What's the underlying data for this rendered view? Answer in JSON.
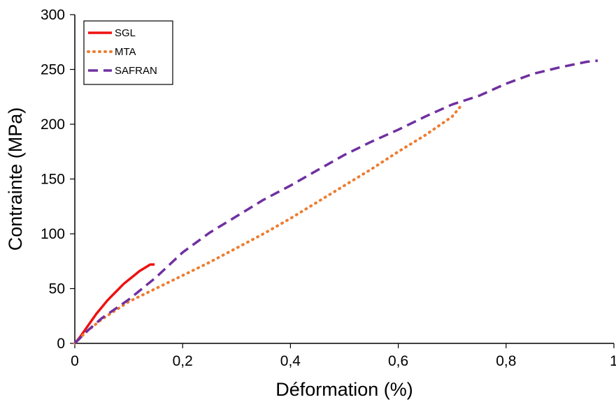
{
  "chart_data": {
    "type": "line",
    "xlabel": "Déformation (%)",
    "ylabel": "Contrainte (MPa)",
    "xlim": [
      0,
      1
    ],
    "ylim": [
      0,
      300
    ],
    "x_ticks": [
      {
        "value": 0,
        "label": "0"
      },
      {
        "value": 0.2,
        "label": "0,2"
      },
      {
        "value": 0.4,
        "label": "0,4"
      },
      {
        "value": 0.6,
        "label": "0,6"
      },
      {
        "value": 0.8,
        "label": "0,8"
      },
      {
        "value": 1,
        "label": "1"
      }
    ],
    "y_ticks": [
      {
        "value": 0,
        "label": "0"
      },
      {
        "value": 50,
        "label": "50"
      },
      {
        "value": 100,
        "label": "100"
      },
      {
        "value": 150,
        "label": "150"
      },
      {
        "value": 200,
        "label": "200"
      },
      {
        "value": 250,
        "label": "250"
      },
      {
        "value": 300,
        "label": "300"
      }
    ],
    "grid": false,
    "legend_position": "top-left",
    "series": [
      {
        "name": "SGL",
        "color": "#ee1111",
        "style": "solid",
        "points": [
          [
            0,
            0
          ],
          [
            0.01,
            6
          ],
          [
            0.02,
            13
          ],
          [
            0.03,
            20
          ],
          [
            0.04,
            27
          ],
          [
            0.05,
            33
          ],
          [
            0.06,
            39
          ],
          [
            0.07,
            44
          ],
          [
            0.08,
            49
          ],
          [
            0.09,
            54
          ],
          [
            0.1,
            58
          ],
          [
            0.11,
            62
          ],
          [
            0.12,
            66
          ],
          [
            0.13,
            69
          ],
          [
            0.14,
            72
          ],
          [
            0.148,
            72
          ]
        ]
      },
      {
        "name": "MTA",
        "color": "#ed7d31",
        "style": "dotted",
        "points": [
          [
            0,
            0
          ],
          [
            0.02,
            10
          ],
          [
            0.05,
            22
          ],
          [
            0.1,
            38
          ],
          [
            0.15,
            50
          ],
          [
            0.2,
            62
          ],
          [
            0.25,
            74
          ],
          [
            0.3,
            87
          ],
          [
            0.35,
            100
          ],
          [
            0.4,
            114
          ],
          [
            0.45,
            129
          ],
          [
            0.5,
            144
          ],
          [
            0.55,
            159
          ],
          [
            0.6,
            175
          ],
          [
            0.65,
            190
          ],
          [
            0.7,
            207
          ],
          [
            0.715,
            216
          ]
        ]
      },
      {
        "name": "SAFRAN",
        "color": "#7030a0",
        "style": "dashed",
        "points": [
          [
            0,
            0
          ],
          [
            0.02,
            10
          ],
          [
            0.05,
            23
          ],
          [
            0.1,
            40
          ],
          [
            0.15,
            60
          ],
          [
            0.2,
            83
          ],
          [
            0.25,
            101
          ],
          [
            0.3,
            116
          ],
          [
            0.35,
            131
          ],
          [
            0.4,
            144
          ],
          [
            0.45,
            158
          ],
          [
            0.5,
            172
          ],
          [
            0.55,
            184
          ],
          [
            0.6,
            195
          ],
          [
            0.65,
            207
          ],
          [
            0.7,
            218
          ],
          [
            0.75,
            226
          ],
          [
            0.8,
            237
          ],
          [
            0.85,
            246
          ],
          [
            0.9,
            252
          ],
          [
            0.95,
            257
          ],
          [
            0.97,
            258
          ]
        ]
      }
    ]
  }
}
